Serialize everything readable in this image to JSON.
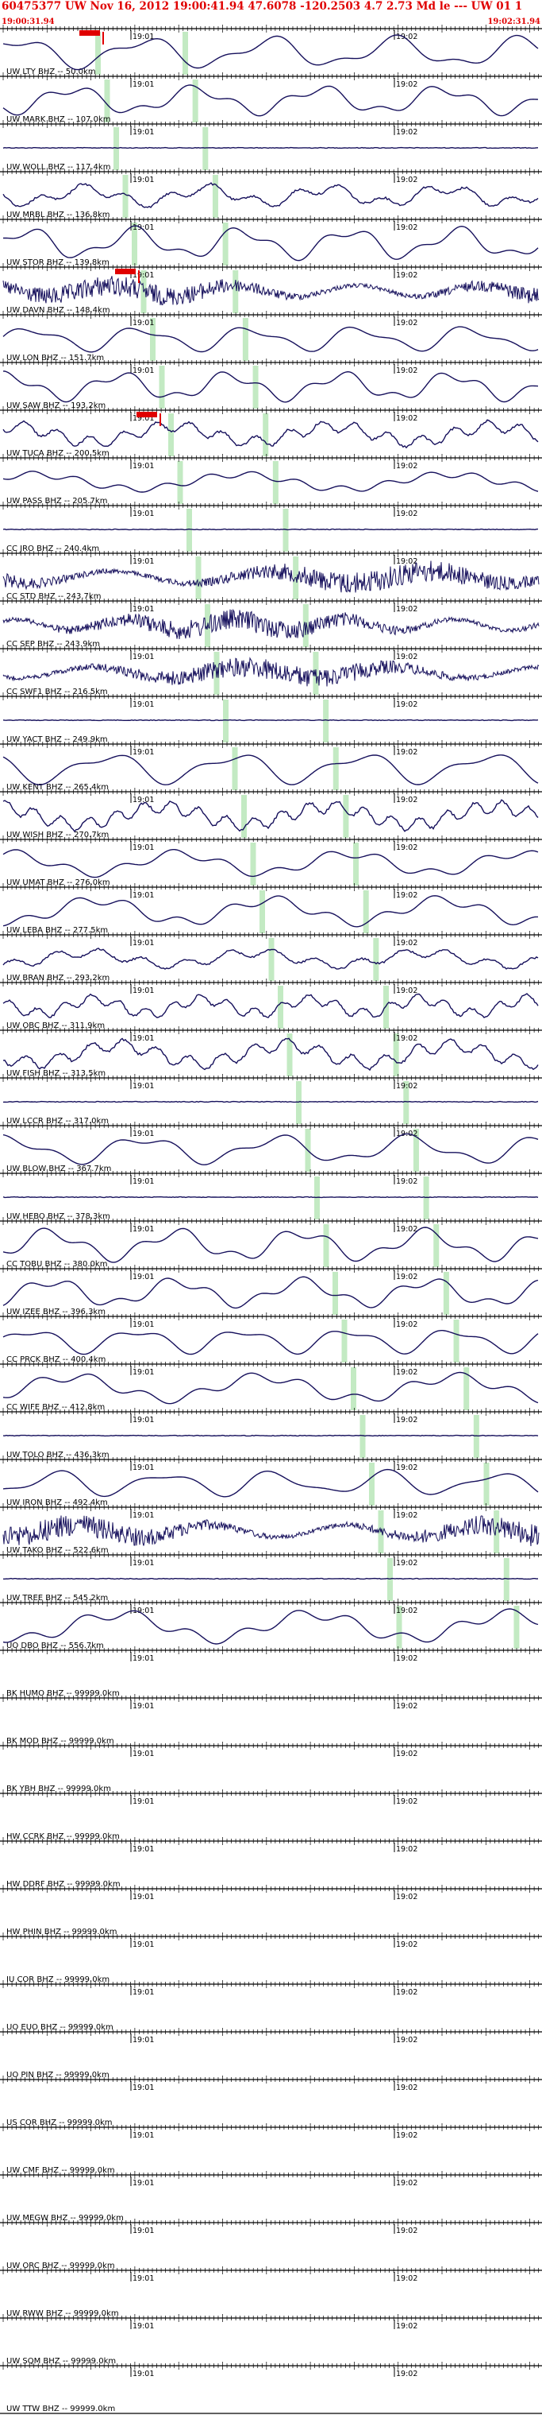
{
  "header": {
    "title": "60475377 UW Nov 16, 2012 19:00:41.94   47.6078 -120.2503  4.7 2.73 Md le --- UW 01   1",
    "start_time": "19:00:31.94",
    "end_time": "19:02:31.94"
  },
  "colors": {
    "trace": "#16105c",
    "pick": "#e00000",
    "arrival": "#b8e6b8",
    "title": "#e00000"
  },
  "time_ticks": [
    "19:01",
    "19:02"
  ],
  "stations": [
    {
      "label": "UW LTY BHZ -- 50.0km",
      "type": "smooth",
      "amp": 1.0,
      "pick": true
    },
    {
      "label": "UW MARK BHZ -- 107.0km",
      "type": "smooth",
      "amp": 0.9
    },
    {
      "label": "UW WOLL BHZ -- 117.4km",
      "type": "flat",
      "amp": 0.1
    },
    {
      "label": "UW MRBL BHZ -- 136.8km",
      "type": "mixed",
      "amp": 0.8
    },
    {
      "label": "UW STOR BHZ -- 139.8km",
      "type": "smooth",
      "amp": 1.0
    },
    {
      "label": "UW DAVN BHZ -- 148.4km",
      "type": "noisy",
      "amp": 0.9,
      "pick": true
    },
    {
      "label": "UW LON BHZ -- 151.7km",
      "type": "smooth",
      "amp": 0.8
    },
    {
      "label": "UW SAW BHZ -- 193.2km",
      "type": "smooth",
      "amp": 0.9
    },
    {
      "label": "UW TUCA BHZ -- 200.5km",
      "type": "mixed",
      "amp": 0.9,
      "pick": true
    },
    {
      "label": "UW PASS BHZ -- 205.7km",
      "type": "smooth",
      "amp": 0.6
    },
    {
      "label": "CC JRO BHZ -- 240.4km",
      "type": "flat",
      "amp": 0.1
    },
    {
      "label": "CC STD BHZ -- 243.7km",
      "type": "noisy",
      "amp": 1.0
    },
    {
      "label": "CC SEP BHZ -- 243.9km",
      "type": "noisy",
      "amp": 0.9
    },
    {
      "label": "CC SWF1 BHZ -- 216.5km",
      "type": "noisy",
      "amp": 0.9
    },
    {
      "label": "UW YACT BHZ -- 249.9km",
      "type": "flat",
      "amp": 0.1
    },
    {
      "label": "UW KENT BHZ -- 265.4km",
      "type": "smooth",
      "amp": 1.0
    },
    {
      "label": "UW WISH BHZ -- 270.7km",
      "type": "mixed",
      "amp": 1.0
    },
    {
      "label": "UW UMAT BHZ -- 276.0km",
      "type": "smooth",
      "amp": 0.8
    },
    {
      "label": "UW LEBA BHZ -- 277.5km",
      "type": "smooth",
      "amp": 0.9
    },
    {
      "label": "UW BRAN BHZ -- 293.2km",
      "type": "mixed",
      "amp": 0.7
    },
    {
      "label": "UW OBC BHZ -- 311.9km",
      "type": "mixed",
      "amp": 0.8
    },
    {
      "label": "UW FISH BHZ -- 313.5km",
      "type": "mixed",
      "amp": 1.0
    },
    {
      "label": "UW LCCR BHZ -- 317.0km",
      "type": "flat",
      "amp": 0.1
    },
    {
      "label": "UW BLOW BHZ -- 367.7km",
      "type": "smooth",
      "amp": 0.9
    },
    {
      "label": "UW HEBO BHZ -- 378.3km",
      "type": "flat",
      "amp": 0.1
    },
    {
      "label": "CC TOBU BHZ -- 380.0km",
      "type": "smooth",
      "amp": 1.0
    },
    {
      "label": "UW IZEE BHZ -- 396.3km",
      "type": "smooth",
      "amp": 0.9
    },
    {
      "label": "CC PRCK BHZ -- 400.4km",
      "type": "smooth",
      "amp": 0.8
    },
    {
      "label": "CC WIFE BHZ -- 412.8km",
      "type": "smooth",
      "amp": 0.9
    },
    {
      "label": "UW TOLO BHZ -- 436.3km",
      "type": "flat",
      "amp": 0.1
    },
    {
      "label": "UW IRON BHZ -- 492.4km",
      "type": "smooth",
      "amp": 0.8
    },
    {
      "label": "UW TAKO BHZ -- 522.6km",
      "type": "noisy",
      "amp": 1.0
    },
    {
      "label": "UW TREE BHZ -- 545.2km",
      "type": "flat",
      "amp": 0.1
    },
    {
      "label": "UO DBO BHZ -- 556.7km",
      "type": "smooth",
      "amp": 1.0
    },
    {
      "label": "BK HUMO BHZ -- 99999.0km",
      "type": "flat",
      "amp": 0
    },
    {
      "label": "BK MOD BHZ -- 99999.0km",
      "type": "flat",
      "amp": 0
    },
    {
      "label": "BK YBH BHZ -- 99999.0km",
      "type": "flat",
      "amp": 0
    },
    {
      "label": "HW CCRK BHZ -- 99999.0km",
      "type": "flat",
      "amp": 0
    },
    {
      "label": "HW DDRF BHZ -- 99999.0km",
      "type": "flat",
      "amp": 0
    },
    {
      "label": "HW PHIN BHZ -- 99999.0km",
      "type": "flat",
      "amp": 0
    },
    {
      "label": "IU COR BHZ -- 99999.0km",
      "type": "flat",
      "amp": 0
    },
    {
      "label": "UO EUO BHZ -- 99999.0km",
      "type": "flat",
      "amp": 0
    },
    {
      "label": "UO PIN BHZ -- 99999.0km",
      "type": "flat",
      "amp": 0
    },
    {
      "label": "US COR BHZ -- 99999.0km",
      "type": "flat",
      "amp": 0
    },
    {
      "label": "UW CMF BHZ -- 99999.0km",
      "type": "flat",
      "amp": 0
    },
    {
      "label": "UW MEGW BHZ -- 99999.0km",
      "type": "flat",
      "amp": 0
    },
    {
      "label": "UW ORC BHZ -- 99999.0km",
      "type": "flat",
      "amp": 0
    },
    {
      "label": "UW RWW BHZ -- 99999.0km",
      "type": "flat",
      "amp": 0
    },
    {
      "label": "UW SQM BHZ -- 99999.0km",
      "type": "flat",
      "amp": 0
    },
    {
      "label": "UW TTW BHZ -- 99999.0km",
      "type": "flat",
      "amp": 0
    }
  ]
}
